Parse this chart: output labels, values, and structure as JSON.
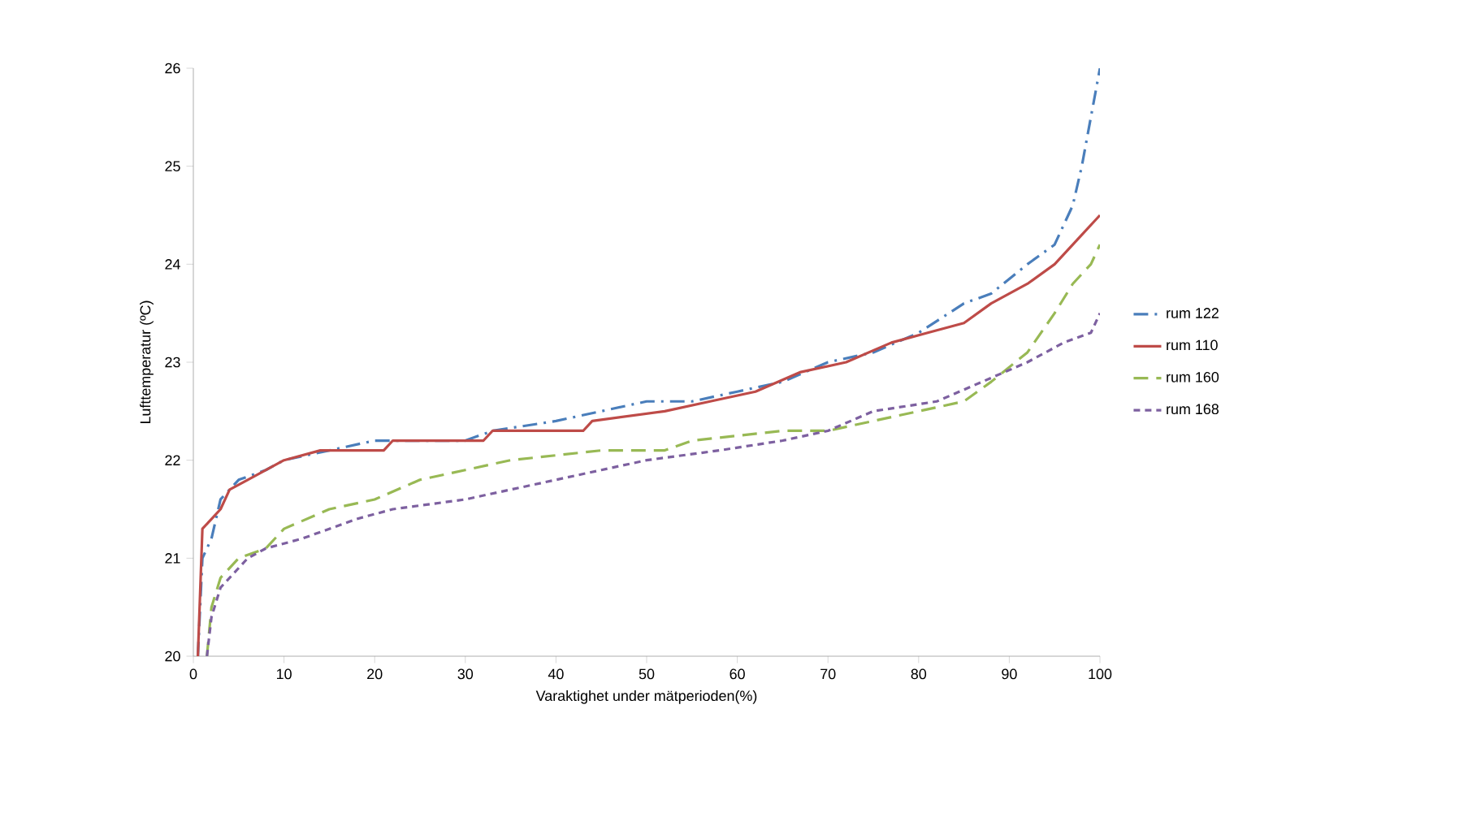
{
  "chart_data": {
    "type": "line",
    "xlabel": "Varaktighet under mätperioden(%)",
    "ylabel": "Lufttemperatur (ºC)",
    "xlim": [
      0,
      100
    ],
    "xticks": [
      0,
      10,
      20,
      30,
      40,
      50,
      60,
      70,
      80,
      90,
      100
    ],
    "ylim": [
      20,
      26
    ],
    "yticks": [
      20,
      21,
      22,
      23,
      24,
      25,
      26
    ],
    "legend": "right",
    "grid": false,
    "series": [
      {
        "name": "rum 122",
        "color": "#4a7ebb",
        "line_style": "dashdot",
        "x": [
          0.5,
          1,
          2,
          3,
          5,
          8,
          10,
          15,
          20,
          30,
          33,
          40,
          45,
          50,
          55,
          60,
          65,
          70,
          75,
          80,
          85,
          88,
          92,
          95,
          97,
          98,
          99,
          100
        ],
        "values": [
          20,
          21,
          21.2,
          21.6,
          21.8,
          21.9,
          22,
          22.1,
          22.2,
          22.2,
          22.3,
          22.4,
          22.5,
          22.6,
          22.6,
          22.7,
          22.8,
          23,
          23.1,
          23.3,
          23.6,
          23.7,
          24,
          24.2,
          24.6,
          25,
          25.5,
          26
        ]
      },
      {
        "name": "rum 110",
        "color": "#be4b48",
        "line_style": "solid",
        "x": [
          0.5,
          1,
          2,
          3,
          4,
          6,
          8,
          10,
          14,
          21,
          22,
          32,
          33,
          43,
          44,
          52,
          57,
          62,
          67,
          72,
          77,
          81,
          85,
          88,
          92,
          95,
          98,
          100
        ],
        "values": [
          20,
          21.3,
          21.4,
          21.5,
          21.7,
          21.8,
          21.9,
          22,
          22.1,
          22.1,
          22.2,
          22.2,
          22.3,
          22.3,
          22.4,
          22.5,
          22.6,
          22.7,
          22.9,
          23,
          23.2,
          23.3,
          23.4,
          23.6,
          23.8,
          24,
          24.3,
          24.5
        ]
      },
      {
        "name": "rum 160",
        "color": "#98b954",
        "line_style": "longdashed",
        "x": [
          1.5,
          2,
          3,
          5,
          8,
          10,
          15,
          20,
          25,
          30,
          35,
          45,
          52,
          55,
          65,
          70,
          75,
          80,
          85,
          88,
          92,
          95,
          97,
          99,
          100
        ],
        "values": [
          20,
          20.5,
          20.8,
          21,
          21.1,
          21.3,
          21.5,
          21.6,
          21.8,
          21.9,
          22,
          22.1,
          22.1,
          22.2,
          22.3,
          22.3,
          22.4,
          22.5,
          22.6,
          22.8,
          23.1,
          23.5,
          23.8,
          24,
          24.2
        ]
      },
      {
        "name": "rum 168",
        "color": "#7d60a0",
        "line_style": "dashed",
        "x": [
          1.5,
          2,
          3,
          6,
          8,
          12,
          18,
          22,
          30,
          35,
          40,
          45,
          50,
          58,
          65,
          70,
          75,
          82,
          87,
          92,
          96,
          99,
          100
        ],
        "values": [
          20,
          20.4,
          20.7,
          21,
          21.1,
          21.2,
          21.4,
          21.5,
          21.6,
          21.7,
          21.8,
          21.9,
          22,
          22.1,
          22.2,
          22.3,
          22.5,
          22.6,
          22.8,
          23,
          23.2,
          23.3,
          23.5
        ]
      }
    ]
  }
}
